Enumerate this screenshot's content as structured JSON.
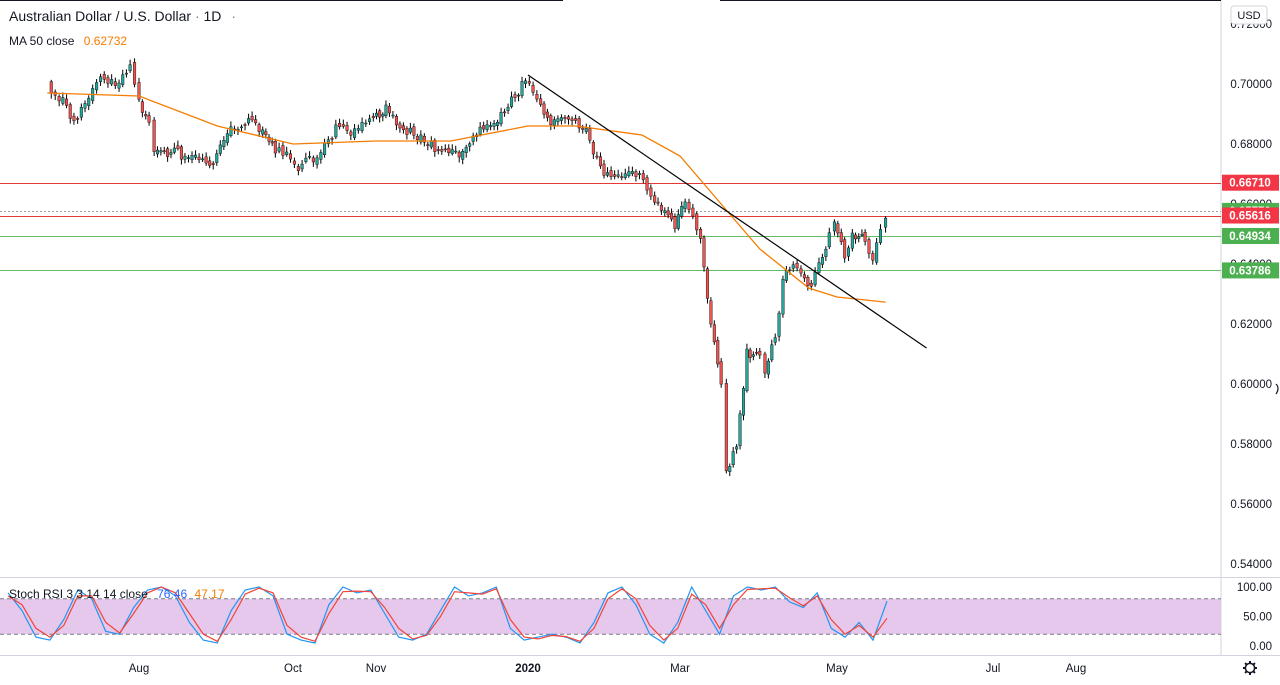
{
  "header": {
    "symbol_title": "Australian Dollar / U.S. Dollar",
    "separator": "·",
    "interval": "1D",
    "more": "·"
  },
  "indicators": {
    "ma": {
      "label": "MA 50 close",
      "value": "0.62732",
      "color": "#f57c00"
    },
    "stoch_rsi": {
      "label": "Stoch RSI 3 3 14 14 close",
      "k_value": "76.46",
      "d_value": "47.17",
      "k_color": "#2196f3",
      "d_color": "#f44336"
    }
  },
  "price_axis": {
    "currency": "USD",
    "ticks": [
      "0.72000",
      "0.70000",
      "0.68000",
      "0.66000",
      "0.64000",
      "0.62000",
      "0.60000",
      "0.58000",
      "0.56000",
      "0.54000"
    ]
  },
  "rsi_axis": {
    "ticks": [
      "100.00",
      "50.00",
      "0.00"
    ]
  },
  "time_axis": {
    "labels": [
      "Aug",
      "Oct",
      "Nov",
      "2020",
      "Mar",
      "May",
      "Jul",
      "Aug"
    ]
  },
  "price_labels": [
    {
      "value": "0.66710",
      "color": "#f23645"
    },
    {
      "value": "0.65770",
      "color": "#4caf50"
    },
    {
      "value": "0.65616",
      "color": "#f23645"
    },
    {
      "value": "0.64934",
      "color": "#4caf50"
    },
    {
      "value": "0.63786",
      "color": "#4caf50"
    }
  ],
  "colors": {
    "up": "#26a69a",
    "down": "#ef5350",
    "ma": "#f57c00",
    "trendline": "#000000",
    "resistance": "#e53935",
    "support": "#66bb6a",
    "rsi_band": "#e1bee7"
  },
  "chart_data": [
    {
      "type": "candlestick",
      "title": "Australian Dollar / U.S. Dollar · 1D",
      "x_labels": [
        "Aug",
        "Oct",
        "Nov",
        "2020",
        "Mar",
        "May",
        "Jul",
        "Aug"
      ],
      "y_range": [
        0.54,
        0.72
      ],
      "close_path": [
        [
          "2019-07-01",
          0.7
        ],
        [
          "2019-07-05",
          0.696
        ],
        [
          "2019-07-10",
          0.688
        ],
        [
          "2019-07-15",
          0.696
        ],
        [
          "2019-07-19",
          0.703
        ],
        [
          "2019-07-24",
          0.699
        ],
        [
          "2019-07-29",
          0.705
        ],
        [
          "2019-08-01",
          0.694
        ],
        [
          "2019-08-05",
          0.687
        ],
        [
          "2019-08-07",
          0.678
        ],
        [
          "2019-08-15",
          0.677
        ],
        [
          "2019-08-22",
          0.676
        ],
        [
          "2019-08-29",
          0.672
        ],
        [
          "2019-09-05",
          0.683
        ],
        [
          "2019-09-12",
          0.688
        ],
        [
          "2019-09-19",
          0.685
        ],
        [
          "2019-09-24",
          0.678
        ],
        [
          "2019-09-30",
          0.675
        ],
        [
          "2019-10-03",
          0.672
        ],
        [
          "2019-10-10",
          0.676
        ],
        [
          "2019-10-17",
          0.685
        ],
        [
          "2019-10-24",
          0.684
        ],
        [
          "2019-10-31",
          0.689
        ],
        [
          "2019-11-05",
          0.692
        ],
        [
          "2019-11-12",
          0.685
        ],
        [
          "2019-11-19",
          0.682
        ],
        [
          "2019-11-26",
          0.678
        ],
        [
          "2019-12-03",
          0.676
        ],
        [
          "2019-12-10",
          0.683
        ],
        [
          "2019-12-17",
          0.686
        ],
        [
          "2019-12-24",
          0.692
        ],
        [
          "2019-12-31",
          0.702
        ],
        [
          "2020-01-06",
          0.692
        ],
        [
          "2020-01-10",
          0.688
        ],
        [
          "2020-01-17",
          0.69
        ],
        [
          "2020-01-24",
          0.684
        ],
        [
          "2020-01-31",
          0.669
        ],
        [
          "2020-02-07",
          0.668
        ],
        [
          "2020-02-14",
          0.671
        ],
        [
          "2020-02-20",
          0.66
        ],
        [
          "2020-02-24",
          0.658
        ],
        [
          "2020-02-28",
          0.652
        ],
        [
          "2020-03-03",
          0.661
        ],
        [
          "2020-03-09",
          0.65
        ],
        [
          "2020-03-13",
          0.62
        ],
        [
          "2020-03-17",
          0.6
        ],
        [
          "2020-03-19",
          0.57
        ],
        [
          "2020-03-23",
          0.58
        ],
        [
          "2020-03-27",
          0.61
        ],
        [
          "2020-04-01",
          0.61
        ],
        [
          "2020-04-03",
          0.605
        ],
        [
          "2020-04-07",
          0.615
        ],
        [
          "2020-04-10",
          0.635
        ],
        [
          "2020-04-14",
          0.64
        ],
        [
          "2020-04-17",
          0.637
        ],
        [
          "2020-04-21",
          0.633
        ],
        [
          "2020-04-24",
          0.639
        ],
        [
          "2020-04-28",
          0.649
        ],
        [
          "2020-04-30",
          0.655
        ],
        [
          "2020-05-04",
          0.643
        ],
        [
          "2020-05-07",
          0.65
        ],
        [
          "2020-05-12",
          0.648
        ],
        [
          "2020-05-15",
          0.642
        ],
        [
          "2020-05-18",
          0.65
        ],
        [
          "2020-05-20",
          0.657
        ]
      ],
      "ma50_path": [
        [
          "2019-07-01",
          0.697
        ],
        [
          "2019-08-01",
          0.696
        ],
        [
          "2019-09-01",
          0.686
        ],
        [
          "2019-10-01",
          0.68
        ],
        [
          "2019-11-01",
          0.681
        ],
        [
          "2019-12-01",
          0.681
        ],
        [
          "2020-01-01",
          0.686
        ],
        [
          "2020-01-20",
          0.686
        ],
        [
          "2020-02-15",
          0.683
        ],
        [
          "2020-03-01",
          0.676
        ],
        [
          "2020-03-15",
          0.662
        ],
        [
          "2020-04-01",
          0.645
        ],
        [
          "2020-04-20",
          0.632
        ],
        [
          "2020-05-01",
          0.629
        ],
        [
          "2020-05-20",
          0.6273
        ]
      ],
      "trendline": [
        [
          "2020-01-01",
          0.703
        ],
        [
          "2020-06-05",
          0.612
        ]
      ],
      "horizontal_levels": [
        0.6671,
        0.6577,
        0.65616,
        0.64934,
        0.63786
      ]
    },
    {
      "type": "line",
      "title": "Stoch RSI 3 3 14 14 close",
      "y_range": [
        0,
        100
      ],
      "bands": [
        20,
        80
      ],
      "series": [
        {
          "name": "K",
          "values": [
            90,
            60,
            15,
            10,
            45,
            95,
            80,
            25,
            20,
            65,
            95,
            100,
            85,
            40,
            10,
            5,
            60,
            95,
            100,
            85,
            20,
            10,
            5,
            70,
            100,
            90,
            95,
            55,
            15,
            10,
            20,
            60,
            100,
            85,
            90,
            100,
            30,
            10,
            15,
            20,
            15,
            5,
            40,
            90,
            100,
            70,
            20,
            5,
            40,
            100,
            60,
            20,
            85,
            100,
            95,
            100,
            75,
            65,
            90,
            30,
            15,
            40,
            10,
            76
          ]
        },
        {
          "name": "D",
          "values": [
            85,
            70,
            30,
            15,
            35,
            85,
            85,
            40,
            22,
            55,
            90,
            100,
            90,
            55,
            20,
            8,
            45,
            88,
            98,
            90,
            35,
            15,
            8,
            55,
            92,
            93,
            92,
            65,
            30,
            12,
            18,
            50,
            92,
            90,
            88,
            97,
            45,
            15,
            12,
            18,
            16,
            8,
            30,
            80,
            97,
            80,
            35,
            10,
            30,
            88,
            70,
            30,
            70,
            96,
            97,
            98,
            82,
            68,
            85,
            45,
            20,
            35,
            15,
            47
          ]
        }
      ]
    }
  ]
}
